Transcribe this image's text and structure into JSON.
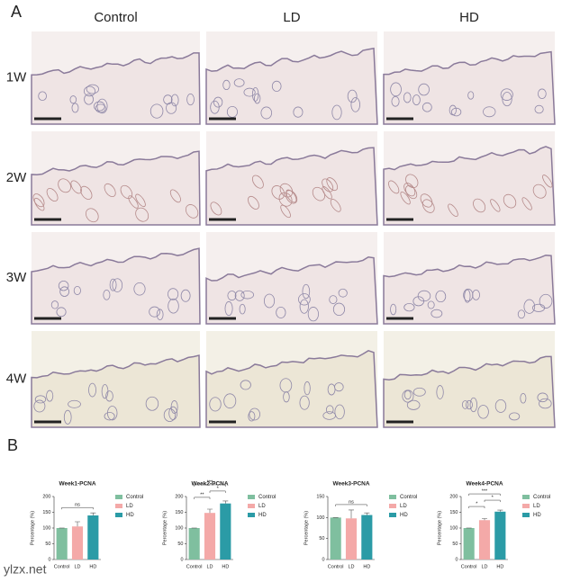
{
  "panel_a": {
    "label": "A",
    "columns": [
      "Control",
      "LD",
      "HD"
    ],
    "rows": [
      "1W",
      "2W",
      "3W",
      "4W"
    ]
  },
  "panel_b": {
    "label": "B"
  },
  "watermark": "ylzx.net",
  "chart_data": [
    {
      "type": "bar",
      "title": "Week1-PCNA",
      "y_label": "Percentage (%)",
      "categories": [
        "Control",
        "LD",
        "HD"
      ],
      "values": [
        100,
        105,
        140
      ],
      "errors": [
        0,
        15,
        8
      ],
      "colors": [
        "#7fbf9f",
        "#f4a9a8",
        "#2b9ba6"
      ],
      "ylim": [
        0,
        200
      ],
      "yticks": [
        0,
        50,
        100,
        150,
        200
      ],
      "comparisons": [
        {
          "label": "ns",
          "pair": [
            0,
            2
          ]
        }
      ]
    },
    {
      "type": "bar",
      "title": "Week2-PCNA",
      "y_label": "Percentage (%)",
      "categories": [
        "Control",
        "LD",
        "HD"
      ],
      "values": [
        100,
        148,
        178
      ],
      "errors": [
        0,
        12,
        8
      ],
      "colors": [
        "#7fbf9f",
        "#f4a9a8",
        "#2b9ba6"
      ],
      "ylim": [
        0,
        200
      ],
      "yticks": [
        0,
        50,
        100,
        150,
        200
      ],
      "comparisons": [
        {
          "label": "**",
          "pair": [
            0,
            1
          ]
        },
        {
          "label": "***",
          "pair": [
            0,
            2
          ]
        },
        {
          "label": "*",
          "pair": [
            1,
            2
          ]
        }
      ]
    },
    {
      "type": "bar",
      "title": "Week3-PCNA",
      "y_label": "Percentage (%)",
      "categories": [
        "Control",
        "LD",
        "HD"
      ],
      "values": [
        100,
        98,
        106
      ],
      "errors": [
        0,
        20,
        5
      ],
      "colors": [
        "#7fbf9f",
        "#f4a9a8",
        "#2b9ba6"
      ],
      "ylim": [
        0,
        150
      ],
      "yticks": [
        0,
        50,
        100,
        150
      ],
      "comparisons": [
        {
          "label": "ns",
          "pair": [
            0,
            2
          ]
        }
      ]
    },
    {
      "type": "bar",
      "title": "Week4-PCNA",
      "y_label": "Percentage (%)",
      "categories": [
        "Control",
        "LD",
        "HD"
      ],
      "values": [
        100,
        125,
        152
      ],
      "errors": [
        0,
        5,
        5
      ],
      "colors": [
        "#7fbf9f",
        "#f4a9a8",
        "#2b9ba6"
      ],
      "ylim": [
        0,
        200
      ],
      "yticks": [
        0,
        50,
        100,
        150,
        200
      ],
      "comparisons": [
        {
          "label": "*",
          "pair": [
            0,
            1
          ]
        },
        {
          "label": "***",
          "pair": [
            0,
            2
          ]
        },
        {
          "label": "*",
          "pair": [
            1,
            2
          ]
        }
      ]
    }
  ]
}
